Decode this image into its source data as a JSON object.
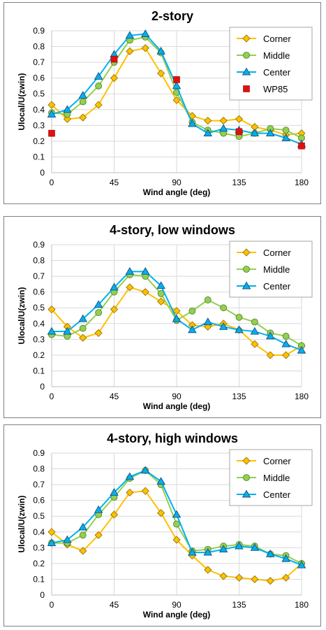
{
  "chart_data": [
    {
      "type": "line",
      "title": "2-story",
      "xlabel": "Wind angle (deg)",
      "ylabel": "Ulocal/U(zwin)",
      "xlim": [
        0,
        180
      ],
      "ylim": [
        0,
        0.9
      ],
      "xticks": [
        "0",
        "45",
        "90",
        "135",
        "180"
      ],
      "yticks": [
        "0",
        "0.1",
        "0.2",
        "0.3",
        "0.4",
        "0.5",
        "0.6",
        "0.7",
        "0.8",
        "0.9"
      ],
      "grid": true,
      "legend": "top-right",
      "series": [
        {
          "name": "Corner",
          "color": "#FFC000",
          "marker": "diamond",
          "x": [
            0,
            11.25,
            22.5,
            33.75,
            45,
            56.25,
            67.5,
            78.75,
            90,
            101.25,
            112.5,
            123.75,
            135,
            146.25,
            157.5,
            168.75,
            180
          ],
          "y": [
            0.43,
            0.34,
            0.35,
            0.43,
            0.6,
            0.77,
            0.79,
            0.63,
            0.46,
            0.36,
            0.33,
            0.33,
            0.34,
            0.29,
            0.27,
            0.24,
            0.25
          ]
        },
        {
          "name": "Middle",
          "color": "#92D050",
          "marker": "circle",
          "x": [
            0,
            11.25,
            22.5,
            33.75,
            45,
            56.25,
            67.5,
            78.75,
            90,
            101.25,
            112.5,
            123.75,
            135,
            146.25,
            157.5,
            168.75,
            180
          ],
          "y": [
            0.38,
            0.37,
            0.45,
            0.55,
            0.7,
            0.84,
            0.86,
            0.76,
            0.51,
            0.32,
            0.27,
            0.25,
            0.23,
            0.25,
            0.28,
            0.27,
            0.22
          ]
        },
        {
          "name": "Center",
          "color": "#00B0F0",
          "marker": "triangle",
          "x": [
            0,
            11.25,
            22.5,
            33.75,
            45,
            56.25,
            67.5,
            78.75,
            90,
            101.25,
            112.5,
            123.75,
            135,
            146.25,
            157.5,
            168.75,
            180
          ],
          "y": [
            0.37,
            0.4,
            0.49,
            0.61,
            0.75,
            0.87,
            0.88,
            0.77,
            0.55,
            0.31,
            0.25,
            0.28,
            0.27,
            0.25,
            0.25,
            0.22,
            0.18
          ]
        },
        {
          "name": "WP85",
          "color": "#E01010",
          "marker": "square",
          "line": false,
          "x": [
            0,
            45,
            90,
            135,
            180
          ],
          "y": [
            0.25,
            0.72,
            0.59,
            0.26,
            0.17
          ]
        }
      ]
    },
    {
      "type": "line",
      "title": "4-story, low windows",
      "xlabel": "Wind angle (deg)",
      "ylabel": "Ulocal/U(zwin)",
      "xlim": [
        0,
        180
      ],
      "ylim": [
        0,
        0.9
      ],
      "xticks": [
        "0",
        "45",
        "90",
        "135",
        "180"
      ],
      "yticks": [
        "0",
        "0.1",
        "0.2",
        "0.3",
        "0.4",
        "0.5",
        "0.6",
        "0.7",
        "0.8",
        "0.9"
      ],
      "grid": true,
      "legend": "top-right",
      "series": [
        {
          "name": "Corner",
          "color": "#FFC000",
          "marker": "diamond",
          "x": [
            0,
            11.25,
            22.5,
            33.75,
            45,
            56.25,
            67.5,
            78.75,
            90,
            101.25,
            112.5,
            123.75,
            135,
            146.25,
            157.5,
            168.75,
            180
          ],
          "y": [
            0.49,
            0.38,
            0.31,
            0.34,
            0.49,
            0.63,
            0.6,
            0.54,
            0.48,
            0.39,
            0.38,
            0.4,
            0.36,
            0.27,
            0.2,
            0.2,
            0.26
          ]
        },
        {
          "name": "Middle",
          "color": "#92D050",
          "marker": "circle",
          "x": [
            0,
            11.25,
            22.5,
            33.75,
            45,
            56.25,
            67.5,
            78.75,
            90,
            101.25,
            112.5,
            123.75,
            135,
            146.25,
            157.5,
            168.75,
            180
          ],
          "y": [
            0.33,
            0.32,
            0.37,
            0.47,
            0.6,
            0.71,
            0.7,
            0.59,
            0.42,
            0.48,
            0.55,
            0.5,
            0.44,
            0.41,
            0.34,
            0.32,
            0.26
          ]
        },
        {
          "name": "Center",
          "color": "#00B0F0",
          "marker": "triangle",
          "x": [
            0,
            11.25,
            22.5,
            33.75,
            45,
            56.25,
            67.5,
            78.75,
            90,
            101.25,
            112.5,
            123.75,
            135,
            146.25,
            157.5,
            168.75,
            180
          ],
          "y": [
            0.35,
            0.35,
            0.43,
            0.52,
            0.63,
            0.73,
            0.73,
            0.64,
            0.43,
            0.36,
            0.41,
            0.38,
            0.36,
            0.35,
            0.32,
            0.27,
            0.23
          ]
        }
      ]
    },
    {
      "type": "line",
      "title": "4-story, high windows",
      "xlabel": "Wind angle (deg)",
      "ylabel": "Ulocal/U(zwin)",
      "xlim": [
        0,
        180
      ],
      "ylim": [
        0,
        0.9
      ],
      "xticks": [
        "0",
        "45",
        "90",
        "135",
        "180"
      ],
      "yticks": [
        "0",
        "0.1",
        "0.2",
        "0.3",
        "0.4",
        "0.5",
        "0.6",
        "0.7",
        "0.8",
        "0.9"
      ],
      "grid": true,
      "legend": "top-right",
      "series": [
        {
          "name": "Corner",
          "color": "#FFC000",
          "marker": "diamond",
          "x": [
            0,
            11.25,
            22.5,
            33.75,
            45,
            56.25,
            67.5,
            78.75,
            90,
            101.25,
            112.5,
            123.75,
            135,
            146.25,
            157.5,
            168.75,
            180
          ],
          "y": [
            0.4,
            0.32,
            0.28,
            0.38,
            0.51,
            0.65,
            0.66,
            0.52,
            0.35,
            0.25,
            0.16,
            0.12,
            0.11,
            0.1,
            0.09,
            0.11,
            0.2
          ]
        },
        {
          "name": "Middle",
          "color": "#92D050",
          "marker": "circle",
          "x": [
            0,
            11.25,
            22.5,
            33.75,
            45,
            56.25,
            67.5,
            78.75,
            90,
            101.25,
            112.5,
            123.75,
            135,
            146.25,
            157.5,
            168.75,
            180
          ],
          "y": [
            0.33,
            0.33,
            0.38,
            0.51,
            0.62,
            0.74,
            0.79,
            0.7,
            0.45,
            0.28,
            0.29,
            0.31,
            0.32,
            0.31,
            0.26,
            0.25,
            0.2
          ]
        },
        {
          "name": "Center",
          "color": "#00B0F0",
          "marker": "triangle",
          "x": [
            0,
            11.25,
            22.5,
            33.75,
            45,
            56.25,
            67.5,
            78.75,
            90,
            101.25,
            112.5,
            123.75,
            135,
            146.25,
            157.5,
            168.75,
            180
          ],
          "y": [
            0.33,
            0.35,
            0.43,
            0.54,
            0.65,
            0.75,
            0.79,
            0.72,
            0.51,
            0.27,
            0.27,
            0.29,
            0.31,
            0.3,
            0.26,
            0.23,
            0.19
          ]
        }
      ]
    }
  ]
}
